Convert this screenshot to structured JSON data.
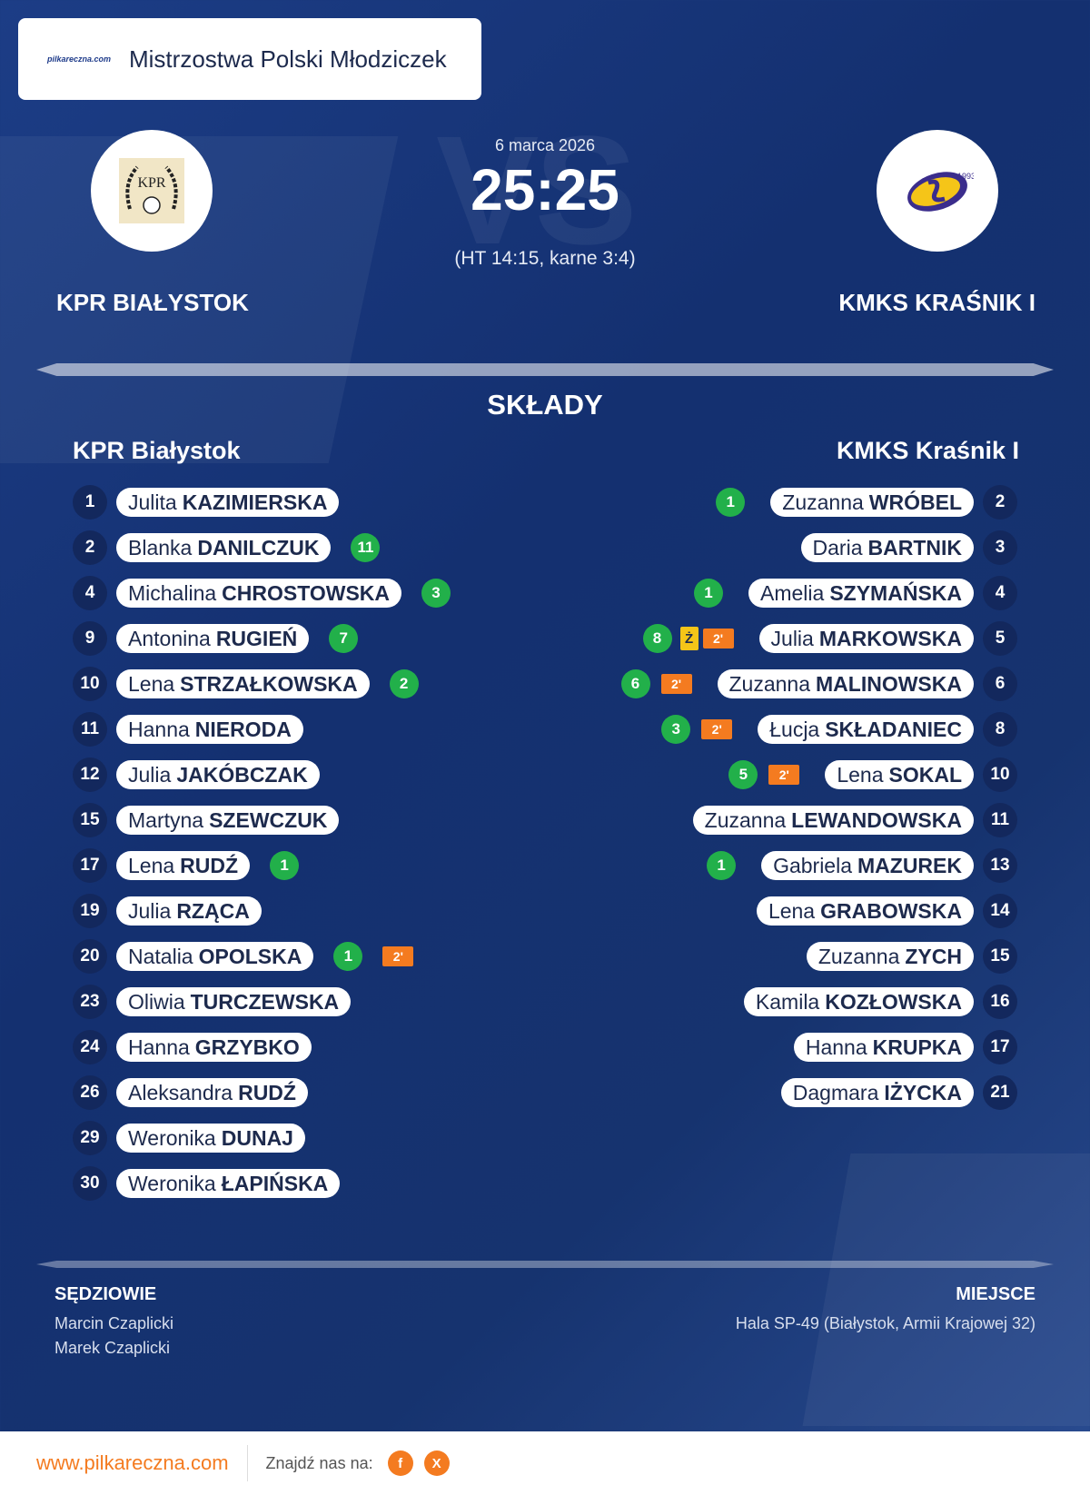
{
  "header": {
    "title": "Mistrzostwa Polski Młodziczek",
    "logo_text": "pilkareczna.com"
  },
  "match": {
    "date": "6 marca 2026",
    "score": "25:25",
    "detail": "(HT 14:15, karne 3:4)",
    "watermark": "VS",
    "home_name": "KPR BIAŁYSTOK",
    "away_name": "KMKS KRAŚNIK I",
    "home_logo_text": "KPR",
    "away_logo_text": "1993"
  },
  "lineups": {
    "title": "SKŁADY",
    "home_title": "KPR Białystok",
    "away_title": "KMKS Kraśnik I",
    "home": [
      {
        "num": "1",
        "first": "Julita",
        "last": "KAZIMIERSKA",
        "goals": "",
        "susp": "",
        "yellow": ""
      },
      {
        "num": "2",
        "first": "Blanka",
        "last": "DANILCZUK",
        "goals": "11",
        "susp": "",
        "yellow": ""
      },
      {
        "num": "4",
        "first": "Michalina",
        "last": "CHROSTOWSKA",
        "goals": "3",
        "susp": "",
        "yellow": ""
      },
      {
        "num": "9",
        "first": "Antonina",
        "last": "RUGIEŃ",
        "goals": "7",
        "susp": "",
        "yellow": ""
      },
      {
        "num": "10",
        "first": "Lena",
        "last": "STRZAŁKOWSKA",
        "goals": "2",
        "susp": "",
        "yellow": ""
      },
      {
        "num": "11",
        "first": "Hanna",
        "last": "NIERODA",
        "goals": "",
        "susp": "",
        "yellow": ""
      },
      {
        "num": "12",
        "first": "Julia",
        "last": "JAKÓBCZAK",
        "goals": "",
        "susp": "",
        "yellow": ""
      },
      {
        "num": "15",
        "first": "Martyna",
        "last": "SZEWCZUK",
        "goals": "",
        "susp": "",
        "yellow": ""
      },
      {
        "num": "17",
        "first": "Lena",
        "last": "RUDŹ",
        "goals": "1",
        "susp": "",
        "yellow": ""
      },
      {
        "num": "19",
        "first": "Julia",
        "last": "RZĄCA",
        "goals": "",
        "susp": "",
        "yellow": ""
      },
      {
        "num": "20",
        "first": "Natalia",
        "last": "OPOLSKA",
        "goals": "1",
        "susp": "2'",
        "yellow": ""
      },
      {
        "num": "23",
        "first": "Oliwia",
        "last": "TURCZEWSKA",
        "goals": "",
        "susp": "",
        "yellow": ""
      },
      {
        "num": "24",
        "first": "Hanna",
        "last": "GRZYBKO",
        "goals": "",
        "susp": "",
        "yellow": ""
      },
      {
        "num": "26",
        "first": "Aleksandra",
        "last": "RUDŹ",
        "goals": "",
        "susp": "",
        "yellow": ""
      },
      {
        "num": "29",
        "first": "Weronika",
        "last": "DUNAJ",
        "goals": "",
        "susp": "",
        "yellow": ""
      },
      {
        "num": "30",
        "first": "Weronika",
        "last": "ŁAPIŃSKA",
        "goals": "",
        "susp": "",
        "yellow": ""
      }
    ],
    "away": [
      {
        "num": "2",
        "first": "Zuzanna",
        "last": "WRÓBEL",
        "goals": "1",
        "susp": "",
        "yellow": ""
      },
      {
        "num": "3",
        "first": "Daria",
        "last": "BARTNIK",
        "goals": "",
        "susp": "",
        "yellow": ""
      },
      {
        "num": "4",
        "first": "Amelia",
        "last": "SZYMAŃSKA",
        "goals": "1",
        "susp": "",
        "yellow": ""
      },
      {
        "num": "5",
        "first": "Julia",
        "last": "MARKOWSKA",
        "goals": "8",
        "susp": "2'",
        "yellow": "Ż"
      },
      {
        "num": "6",
        "first": "Zuzanna",
        "last": "MALINOWSKA",
        "goals": "6",
        "susp": "2'",
        "yellow": ""
      },
      {
        "num": "8",
        "first": "Łucja",
        "last": "SKŁADANIEC",
        "goals": "3",
        "susp": "2'",
        "yellow": ""
      },
      {
        "num": "10",
        "first": "Lena",
        "last": "SOKAL",
        "goals": "5",
        "susp": "2'",
        "yellow": ""
      },
      {
        "num": "11",
        "first": "Zuzanna",
        "last": "LEWANDOWSKA",
        "goals": "",
        "susp": "",
        "yellow": ""
      },
      {
        "num": "13",
        "first": "Gabriela",
        "last": "MAZUREK",
        "goals": "1",
        "susp": "",
        "yellow": ""
      },
      {
        "num": "14",
        "first": "Lena",
        "last": "GRABOWSKA",
        "goals": "",
        "susp": "",
        "yellow": ""
      },
      {
        "num": "15",
        "first": "Zuzanna",
        "last": "ZYCH",
        "goals": "",
        "susp": "",
        "yellow": ""
      },
      {
        "num": "16",
        "first": "Kamila",
        "last": "KOZŁOWSKA",
        "goals": "",
        "susp": "",
        "yellow": ""
      },
      {
        "num": "17",
        "first": "Hanna",
        "last": "KRUPKA",
        "goals": "",
        "susp": "",
        "yellow": ""
      },
      {
        "num": "21",
        "first": "Dagmara",
        "last": "IŻYCKA",
        "goals": "",
        "susp": "",
        "yellow": ""
      }
    ]
  },
  "referees": {
    "title": "SĘDZIOWIE",
    "names": [
      "Marcin Czaplicki",
      "Marek Czaplicki"
    ]
  },
  "venue": {
    "title": "MIEJSCE",
    "name": "Hala SP-49 (Białystok, Armii Krajowej 32)"
  },
  "footer": {
    "url": "www.pilkareczna.com",
    "find": "Znajdź nas na:",
    "social_f": "f",
    "social_x": "X"
  },
  "colors": {
    "goal": "#22b04a",
    "suspension": "#f47b20",
    "yellow_card": "#f5c518",
    "background": "#16336f"
  }
}
